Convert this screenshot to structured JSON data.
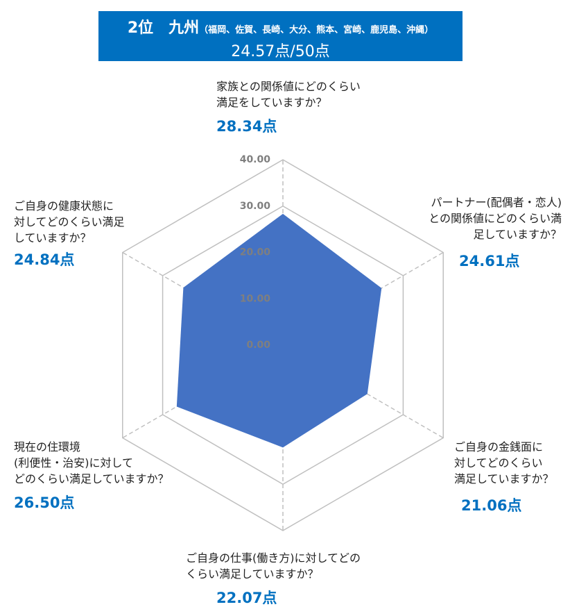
{
  "chart_data": {
    "type": "radar",
    "title": "2位　九州",
    "subtitle": "（福岡、佐賀、長崎、大分、熊本、宮崎、鹿児島、沖縄）",
    "annotation": "24.57点/50点",
    "categories": [
      "家族との関係値にどのくらい\n満足をしていますか？",
      "パートナー(配偶者・恋人)\nとの関係値にどのくらい満\n足していますか？",
      "ご自身の金銭面に\n対してどのくらい\n満足していますか？",
      "ご自身の仕事(働き方)に対してどの\nくらい満足していますか？",
      "現在の住環境\n(利便性・治安)に対して\nどのくらい満足していますか？",
      "ご自身の健康状態に\n対してどのくらい満足\nしていますか？"
    ],
    "values": [
      28.34,
      24.61,
      21.06,
      22.07,
      26.5,
      24.84
    ],
    "value_labels": [
      "28.34点",
      "24.61点",
      "21.06点",
      "22.07点",
      "26.50点",
      "24.84点"
    ],
    "color": "#4472c4",
    "ylim": [
      0,
      40
    ],
    "yticks": [
      {
        "value": 0,
        "label": "0.00"
      },
      {
        "value": 10,
        "label": "10.00"
      },
      {
        "value": 20,
        "label": "20.00"
      },
      {
        "value": 30,
        "label": "30.00"
      },
      {
        "value": 40,
        "label": "40.00"
      }
    ],
    "grid": true
  }
}
